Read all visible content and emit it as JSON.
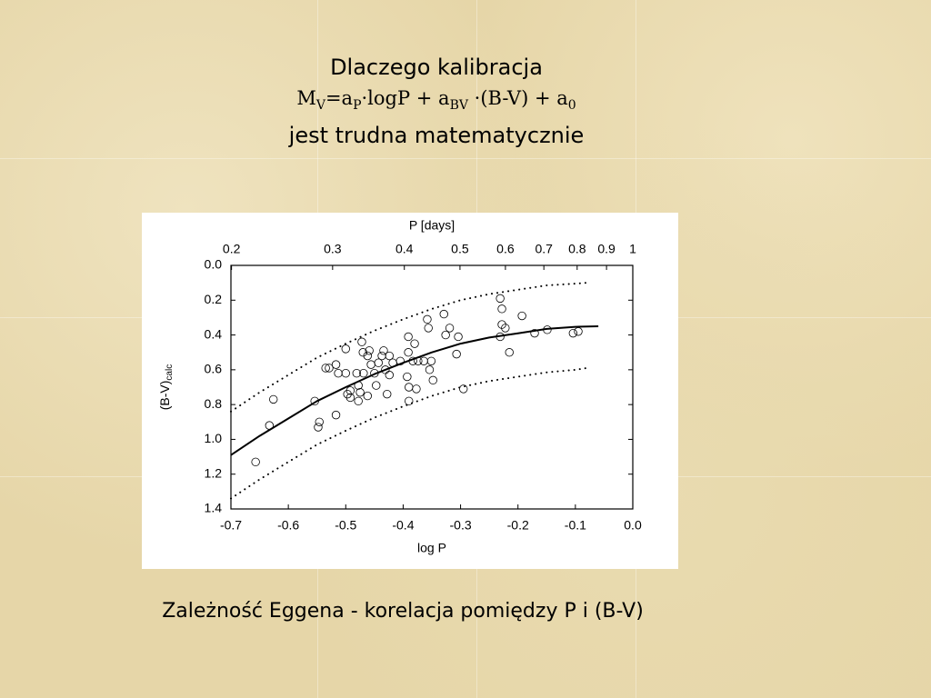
{
  "heading": {
    "line1": "Dlaczego kalibracja",
    "formula": [
      [
        "M",
        "V"
      ],
      [
        "=a",
        "P"
      ],
      [
        "·logP + a",
        "BV"
      ],
      [
        " ·(B-V) + a",
        "0"
      ]
    ],
    "line3": "jest trudna matematycznie"
  },
  "chart_data": {
    "type": "scatter",
    "xlabel": "log P",
    "x2label": "P [days]",
    "ylabel": [
      "(B-V)",
      "calc"
    ],
    "xlim": [
      -0.7,
      0.0
    ],
    "xticks": [
      -0.7,
      -0.6,
      -0.5,
      -0.4,
      -0.3,
      -0.2,
      -0.1,
      {
        "value": 0.0,
        "label": "0.0"
      }
    ],
    "x2lim": [
      0.19953,
      1
    ],
    "x2scale": "log",
    "x2ticks": [
      0.2,
      0.3,
      0.4,
      0.5,
      0.6,
      0.7,
      0.8,
      0.9,
      1
    ],
    "ylim": [
      0,
      1.4
    ],
    "y_inverted": true,
    "yticks": [
      {
        "value": 0.0,
        "label": "0.0"
      },
      0.2,
      0.4,
      0.6,
      0.8,
      {
        "value": 1.0,
        "label": "1.0"
      },
      1.2,
      1.4
    ],
    "series": [
      {
        "kind": "points",
        "marker": "open-circle",
        "color": "#000000",
        "x": [
          -0.657,
          -0.626,
          -0.633,
          -0.554,
          -0.548,
          -0.546,
          -0.535,
          -0.529,
          -0.517,
          -0.517,
          -0.513,
          -0.5,
          -0.5,
          -0.497,
          -0.492,
          -0.492,
          -0.481,
          -0.478,
          -0.475,
          -0.478,
          -0.472,
          -0.47,
          -0.469,
          -0.462,
          -0.462,
          -0.459,
          -0.456,
          -0.45,
          -0.447,
          -0.443,
          -0.437,
          -0.434,
          -0.431,
          -0.428,
          -0.424,
          -0.424,
          -0.418,
          -0.405,
          -0.393,
          -0.391,
          -0.391,
          -0.39,
          -0.39,
          -0.383,
          -0.38,
          -0.377,
          -0.374,
          -0.364,
          -0.358,
          -0.356,
          -0.354,
          -0.351,
          -0.348,
          -0.329,
          -0.326,
          -0.319,
          -0.307,
          -0.304,
          -0.295,
          -0.231,
          -0.228,
          -0.228,
          -0.231,
          -0.222,
          -0.215,
          -0.193,
          -0.171,
          -0.149,
          -0.104,
          -0.095
        ],
        "values": [
          1.13,
          0.77,
          0.92,
          0.78,
          0.93,
          0.9,
          0.59,
          0.59,
          0.57,
          0.86,
          0.62,
          0.48,
          0.62,
          0.74,
          0.72,
          0.76,
          0.62,
          0.69,
          0.73,
          0.78,
          0.44,
          0.5,
          0.62,
          0.52,
          0.75,
          0.49,
          0.57,
          0.62,
          0.69,
          0.56,
          0.52,
          0.49,
          0.6,
          0.74,
          0.52,
          0.63,
          0.56,
          0.55,
          0.64,
          0.41,
          0.5,
          0.7,
          0.78,
          0.55,
          0.45,
          0.71,
          0.55,
          0.55,
          0.31,
          0.36,
          0.6,
          0.55,
          0.66,
          0.28,
          0.4,
          0.36,
          0.51,
          0.41,
          0.71,
          0.19,
          0.25,
          0.34,
          0.41,
          0.36,
          0.5,
          0.29,
          0.39,
          0.37,
          0.39,
          0.38
        ]
      },
      {
        "kind": "line",
        "style": "solid",
        "color": "#000000",
        "x": [
          -0.7,
          -0.65,
          -0.6,
          -0.55,
          -0.5,
          -0.45,
          -0.4,
          -0.35,
          -0.3,
          -0.25,
          -0.2,
          -0.15,
          -0.1,
          -0.06
        ],
        "values": [
          1.09,
          0.98,
          0.88,
          0.78,
          0.7,
          0.625,
          0.56,
          0.5,
          0.45,
          0.415,
          0.39,
          0.365,
          0.353,
          0.35
        ]
      },
      {
        "kind": "line",
        "style": "dotted",
        "color": "#000000",
        "x": [
          -0.7,
          -0.65,
          -0.6,
          -0.55,
          -0.5,
          -0.45,
          -0.4,
          -0.35,
          -0.3,
          -0.25,
          -0.2,
          -0.15,
          -0.1,
          -0.08
        ],
        "values": [
          0.84,
          0.73,
          0.63,
          0.53,
          0.45,
          0.375,
          0.31,
          0.25,
          0.2,
          0.165,
          0.14,
          0.115,
          0.105,
          0.1
        ]
      },
      {
        "kind": "line",
        "style": "dotted",
        "color": "#000000",
        "x": [
          -0.7,
          -0.65,
          -0.6,
          -0.55,
          -0.5,
          -0.45,
          -0.4,
          -0.35,
          -0.3,
          -0.25,
          -0.2,
          -0.15,
          -0.1,
          -0.08
        ],
        "values": [
          1.34,
          1.23,
          1.13,
          1.03,
          0.95,
          0.875,
          0.81,
          0.75,
          0.7,
          0.665,
          0.64,
          0.615,
          0.6,
          0.59
        ]
      }
    ]
  },
  "caption": "Zależność Eggena - korelacja pomiędzy P i (B-V)"
}
